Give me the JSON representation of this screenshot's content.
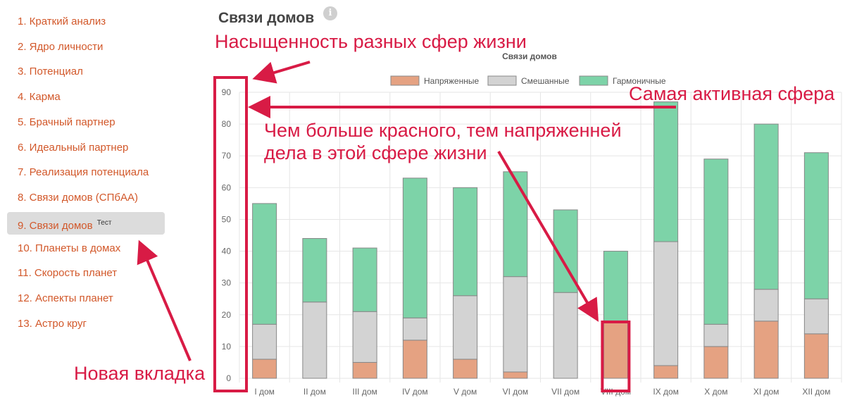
{
  "sidebar": {
    "items": [
      {
        "label": "1. Краткий анализ"
      },
      {
        "label": "2. Ядро личности"
      },
      {
        "label": "3. Потенциал"
      },
      {
        "label": "4. Карма"
      },
      {
        "label": "5. Брачный партнер"
      },
      {
        "label": "6. Идеальный партнер"
      },
      {
        "label": "7. Реализация потенциала"
      },
      {
        "label": "8. Связи домов (СПбАА)"
      },
      {
        "label": "9. Связи домов",
        "badge": "Тест",
        "active": true
      },
      {
        "label": "10. Планеты в домах"
      },
      {
        "label": "11. Скорость планет"
      },
      {
        "label": "12. Аспекты планет"
      },
      {
        "label": "13. Астро круг"
      }
    ]
  },
  "page": {
    "title": "Связи домов",
    "info_icon": "info-icon"
  },
  "annotations": {
    "saturation": "Насыщенность разных сфер жизни",
    "most_active": "Самая активная сфера",
    "more_red_line1": "Чем больше красного, тем напряженней",
    "more_red_line2": "дела в этой сфере жизни",
    "new_tab": "Новая вкладка",
    "color": "#d81b45"
  },
  "chart_data": {
    "type": "bar",
    "stacked": true,
    "title": "Связи домов",
    "categories": [
      "I дом",
      "II дом",
      "III дом",
      "IV дом",
      "V дом",
      "VI дом",
      "VII дом",
      "VIII дом",
      "IX дом",
      "X дом",
      "XI дом",
      "XII дом"
    ],
    "series": [
      {
        "name": "Напряженные",
        "color": "#e5a282",
        "values": [
          6,
          0,
          5,
          12,
          6,
          2,
          0,
          18,
          4,
          10,
          18,
          14
        ]
      },
      {
        "name": "Смешанные",
        "color": "#d3d3d3",
        "values": [
          11,
          24,
          16,
          7,
          20,
          30,
          27,
          0,
          39,
          7,
          10,
          11
        ]
      },
      {
        "name": "Гармоничные",
        "color": "#7dd3a8",
        "values": [
          38,
          20,
          20,
          44,
          34,
          33,
          26,
          22,
          44,
          52,
          52,
          46
        ]
      }
    ],
    "ylim": [
      0,
      90
    ],
    "yticks": [
      "0",
      "10",
      "20",
      "30",
      "40",
      "50",
      "60",
      "70",
      "80",
      "90"
    ],
    "legend": "top",
    "grid": true
  }
}
